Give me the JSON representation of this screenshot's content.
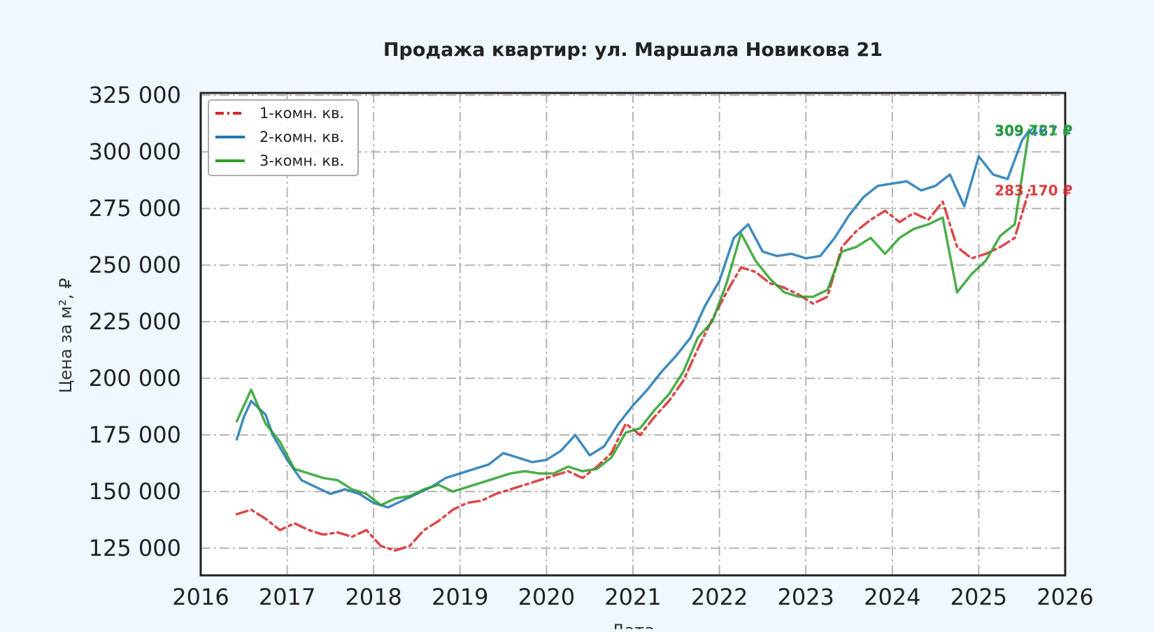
{
  "chart_data": {
    "type": "line",
    "title": "Продажа квартир: ул. Маршала Новикова 21",
    "xlabel": "Дата",
    "ylabel": "Цена за м², ₽",
    "x_ticks": [
      "2016",
      "2017",
      "2018",
      "2019",
      "2020",
      "2021",
      "2022",
      "2023",
      "2024",
      "2025",
      "2026"
    ],
    "y_ticks": [
      "125 000",
      "150 000",
      "175 000",
      "200 000",
      "225 000",
      "250 000",
      "275 000",
      "300 000",
      "325 000"
    ],
    "xlim": [
      "2016-01",
      "2026-01"
    ],
    "ylim": [
      113000,
      326000
    ],
    "grid": true,
    "legend_position": "top-left",
    "series": [
      {
        "name": "1-комн. кв.",
        "color": "#d62728",
        "dash": "dashdot",
        "last_label": "283 170 ₽",
        "points": [
          [
            "2016-06",
            140000
          ],
          [
            "2016-08",
            142000
          ],
          [
            "2016-10",
            138000
          ],
          [
            "2016-12",
            133000
          ],
          [
            "2017-02",
            136000
          ],
          [
            "2017-04",
            133000
          ],
          [
            "2017-06",
            131000
          ],
          [
            "2017-08",
            132000
          ],
          [
            "2017-10",
            130000
          ],
          [
            "2017-12",
            133000
          ],
          [
            "2018-02",
            126000
          ],
          [
            "2018-04",
            124000
          ],
          [
            "2018-06",
            126000
          ],
          [
            "2018-08",
            133000
          ],
          [
            "2018-10",
            137000
          ],
          [
            "2018-12",
            142000
          ],
          [
            "2019-02",
            145000
          ],
          [
            "2019-04",
            146000
          ],
          [
            "2019-06",
            149000
          ],
          [
            "2019-08",
            151000
          ],
          [
            "2019-10",
            153000
          ],
          [
            "2019-12",
            155000
          ],
          [
            "2020-02",
            157000
          ],
          [
            "2020-04",
            159000
          ],
          [
            "2020-06",
            156000
          ],
          [
            "2020-08",
            161000
          ],
          [
            "2020-10",
            167000
          ],
          [
            "2020-12",
            180000
          ],
          [
            "2021-02",
            175000
          ],
          [
            "2021-04",
            183000
          ],
          [
            "2021-06",
            190000
          ],
          [
            "2021-08",
            199000
          ],
          [
            "2021-10",
            213000
          ],
          [
            "2021-12",
            226000
          ],
          [
            "2022-02",
            238000
          ],
          [
            "2022-04",
            249000
          ],
          [
            "2022-06",
            247000
          ],
          [
            "2022-08",
            242000
          ],
          [
            "2022-10",
            240000
          ],
          [
            "2022-12",
            237000
          ],
          [
            "2023-02",
            233000
          ],
          [
            "2023-04",
            236000
          ],
          [
            "2023-06",
            258000
          ],
          [
            "2023-08",
            265000
          ],
          [
            "2023-10",
            270000
          ],
          [
            "2023-12",
            274000
          ],
          [
            "2024-02",
            269000
          ],
          [
            "2024-04",
            273000
          ],
          [
            "2024-06",
            270000
          ],
          [
            "2024-08",
            278000
          ],
          [
            "2024-10",
            258000
          ],
          [
            "2024-12",
            253000
          ],
          [
            "2025-02",
            255000
          ],
          [
            "2025-04",
            258000
          ],
          [
            "2025-06",
            262000
          ],
          [
            "2025-08",
            283170
          ]
        ]
      },
      {
        "name": "2-комн. кв.",
        "color": "#1f77b4",
        "dash": "solid",
        "last_label": "309 467 ₽",
        "points": [
          [
            "2016-06",
            173000
          ],
          [
            "2016-07",
            183000
          ],
          [
            "2016-08",
            190000
          ],
          [
            "2016-10",
            184000
          ],
          [
            "2016-11",
            175000
          ],
          [
            "2017-01",
            164000
          ],
          [
            "2017-03",
            155000
          ],
          [
            "2017-05",
            152000
          ],
          [
            "2017-07",
            149000
          ],
          [
            "2017-09",
            151000
          ],
          [
            "2017-11",
            149000
          ],
          [
            "2018-01",
            145000
          ],
          [
            "2018-03",
            143000
          ],
          [
            "2018-05",
            146000
          ],
          [
            "2018-07",
            149000
          ],
          [
            "2018-09",
            152000
          ],
          [
            "2018-11",
            156000
          ],
          [
            "2019-01",
            158000
          ],
          [
            "2019-03",
            160000
          ],
          [
            "2019-05",
            162000
          ],
          [
            "2019-07",
            167000
          ],
          [
            "2019-09",
            165000
          ],
          [
            "2019-11",
            163000
          ],
          [
            "2020-01",
            164000
          ],
          [
            "2020-03",
            168000
          ],
          [
            "2020-05",
            175000
          ],
          [
            "2020-07",
            166000
          ],
          [
            "2020-09",
            170000
          ],
          [
            "2020-11",
            180000
          ],
          [
            "2021-01",
            188000
          ],
          [
            "2021-03",
            195000
          ],
          [
            "2021-05",
            203000
          ],
          [
            "2021-07",
            210000
          ],
          [
            "2021-09",
            218000
          ],
          [
            "2021-11",
            232000
          ],
          [
            "2022-01",
            243000
          ],
          [
            "2022-03",
            262000
          ],
          [
            "2022-05",
            268000
          ],
          [
            "2022-07",
            256000
          ],
          [
            "2022-09",
            254000
          ],
          [
            "2022-11",
            255000
          ],
          [
            "2023-01",
            253000
          ],
          [
            "2023-03",
            254000
          ],
          [
            "2023-05",
            262000
          ],
          [
            "2023-07",
            272000
          ],
          [
            "2023-09",
            280000
          ],
          [
            "2023-11",
            285000
          ],
          [
            "2024-01",
            286000
          ],
          [
            "2024-03",
            287000
          ],
          [
            "2024-05",
            283000
          ],
          [
            "2024-07",
            285000
          ],
          [
            "2024-09",
            290000
          ],
          [
            "2024-11",
            276000
          ],
          [
            "2025-01",
            298000
          ],
          [
            "2025-03",
            290000
          ],
          [
            "2025-05",
            288000
          ],
          [
            "2025-07",
            305000
          ],
          [
            "2025-08",
            309467
          ]
        ]
      },
      {
        "name": "3-комн. кв.",
        "color": "#2ca02c",
        "dash": "solid",
        "last_label": "309 721 ₽",
        "points": [
          [
            "2016-06",
            181000
          ],
          [
            "2016-07",
            188000
          ],
          [
            "2016-08",
            195000
          ],
          [
            "2016-10",
            180000
          ],
          [
            "2016-12",
            172000
          ],
          [
            "2017-02",
            160000
          ],
          [
            "2017-04",
            158000
          ],
          [
            "2017-06",
            156000
          ],
          [
            "2017-08",
            155000
          ],
          [
            "2017-10",
            151000
          ],
          [
            "2017-12",
            149000
          ],
          [
            "2018-02",
            144000
          ],
          [
            "2018-04",
            147000
          ],
          [
            "2018-06",
            148000
          ],
          [
            "2018-08",
            151000
          ],
          [
            "2018-10",
            153000
          ],
          [
            "2018-12",
            150000
          ],
          [
            "2019-02",
            152000
          ],
          [
            "2019-04",
            154000
          ],
          [
            "2019-06",
            156000
          ],
          [
            "2019-08",
            158000
          ],
          [
            "2019-10",
            159000
          ],
          [
            "2019-12",
            158000
          ],
          [
            "2020-02",
            158000
          ],
          [
            "2020-04",
            161000
          ],
          [
            "2020-06",
            159000
          ],
          [
            "2020-08",
            160000
          ],
          [
            "2020-10",
            165000
          ],
          [
            "2020-12",
            176000
          ],
          [
            "2021-02",
            178000
          ],
          [
            "2021-04",
            186000
          ],
          [
            "2021-06",
            193000
          ],
          [
            "2021-08",
            203000
          ],
          [
            "2021-10",
            218000
          ],
          [
            "2021-12",
            225000
          ],
          [
            "2022-02",
            242000
          ],
          [
            "2022-04",
            264000
          ],
          [
            "2022-06",
            252000
          ],
          [
            "2022-08",
            244000
          ],
          [
            "2022-10",
            238000
          ],
          [
            "2022-12",
            236000
          ],
          [
            "2023-02",
            236000
          ],
          [
            "2023-04",
            239000
          ],
          [
            "2023-06",
            256000
          ],
          [
            "2023-08",
            258000
          ],
          [
            "2023-10",
            262000
          ],
          [
            "2023-12",
            255000
          ],
          [
            "2024-02",
            262000
          ],
          [
            "2024-04",
            266000
          ],
          [
            "2024-06",
            268000
          ],
          [
            "2024-08",
            271000
          ],
          [
            "2024-10",
            238000
          ],
          [
            "2024-12",
            246000
          ],
          [
            "2025-02",
            252000
          ],
          [
            "2025-04",
            263000
          ],
          [
            "2025-06",
            268000
          ],
          [
            "2025-08",
            309721
          ]
        ]
      }
    ]
  }
}
